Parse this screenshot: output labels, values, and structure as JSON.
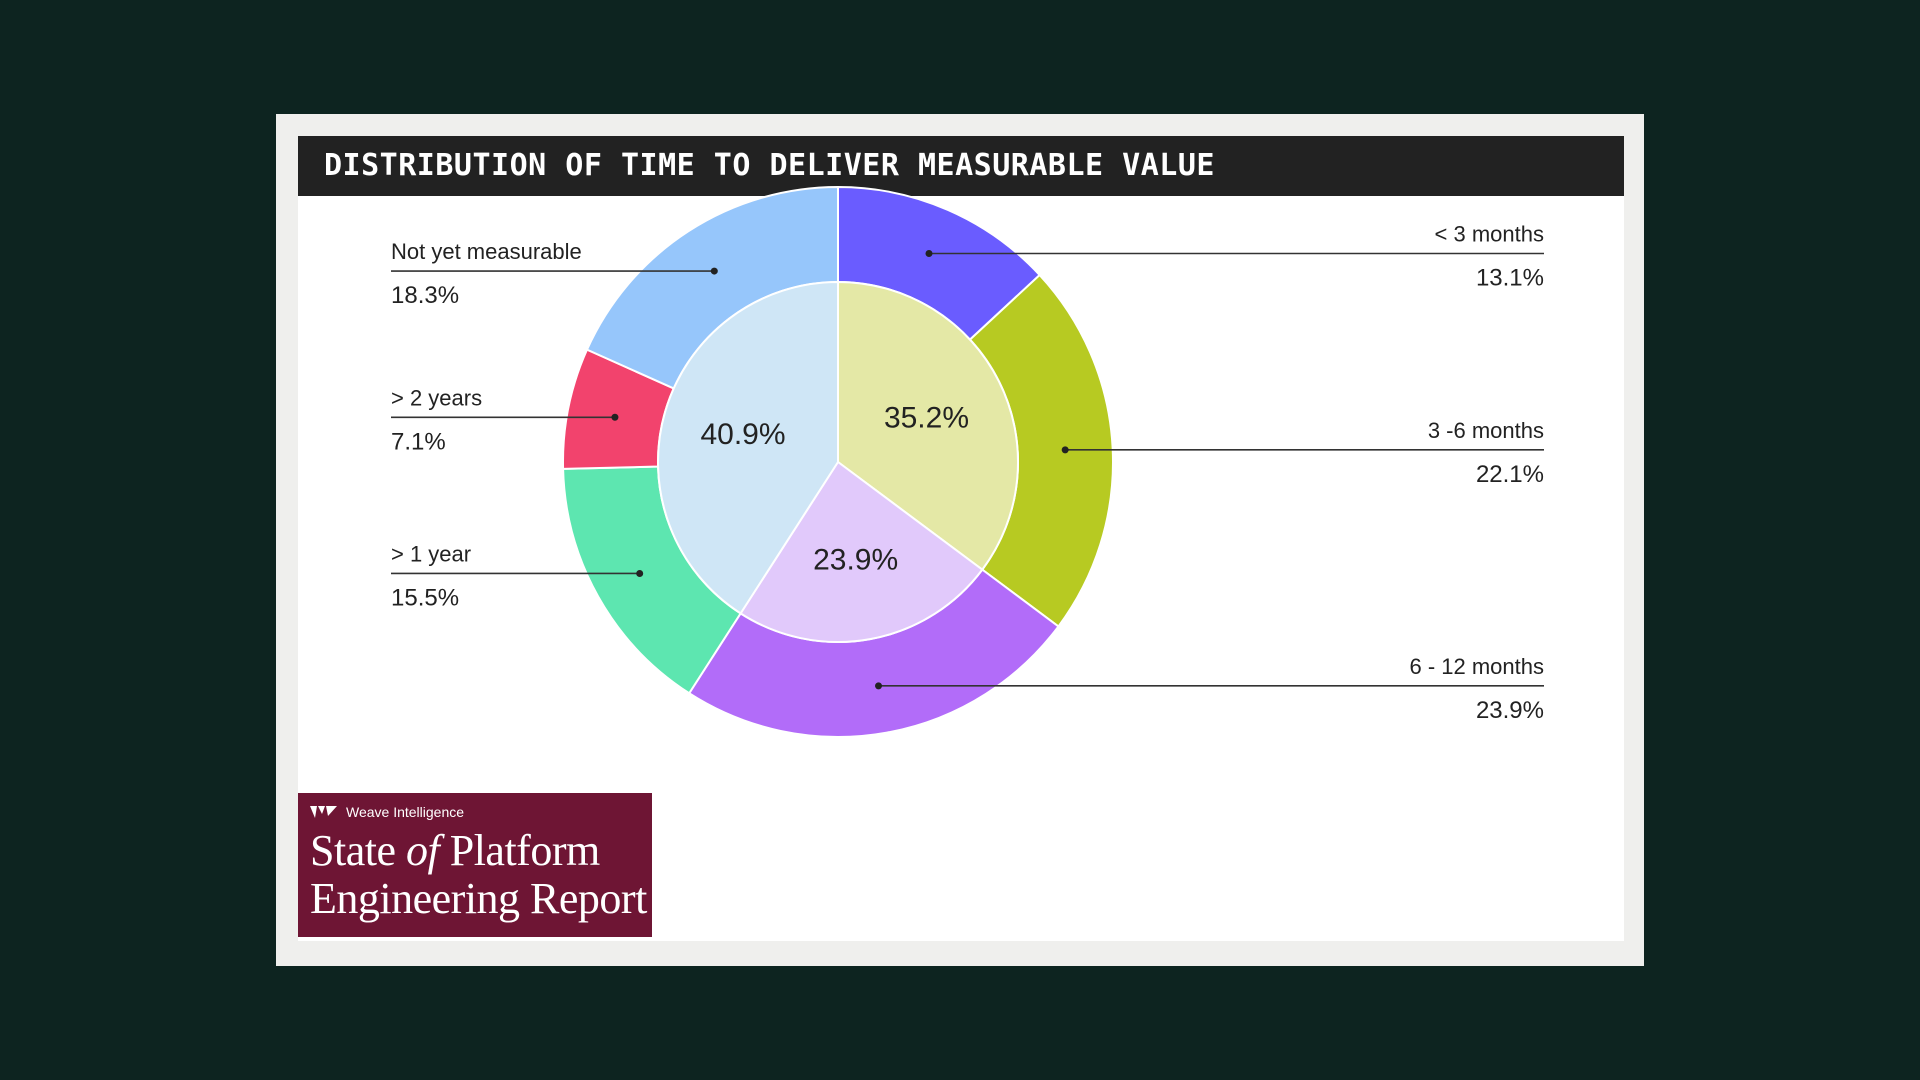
{
  "title": "DISTRIBUTION OF TIME TO DELIVER MEASURABLE VALUE",
  "brand": {
    "company": "Weave Intelligence",
    "logo_icon": "weave-logo-icon",
    "report_line1_a": "State",
    "report_line1_b": "of",
    "report_line1_c": "Platform",
    "report_line2": "Engineering Report"
  },
  "colors": {
    "background": "#0d2420",
    "title_bar": "#222222",
    "brand_bg": "#6e1534"
  },
  "chart_data": {
    "type": "pie",
    "outer_ring": [
      {
        "label": "< 3 months",
        "value": 13.1,
        "value_label": "13.1%",
        "color": "#6a5cff",
        "side": "right"
      },
      {
        "label": "3 -6 months",
        "value": 22.1,
        "value_label": "22.1%",
        "color": "#b7ca22",
        "side": "right"
      },
      {
        "label": "6 - 12 months",
        "value": 23.9,
        "value_label": "23.9%",
        "color": "#b26cf9",
        "side": "right"
      },
      {
        "label": "> 1 year",
        "value": 15.5,
        "value_label": "15.5%",
        "color": "#5de6b0",
        "side": "left"
      },
      {
        "label": "> 2 years",
        "value": 7.1,
        "value_label": "7.1%",
        "color": "#f2436d",
        "side": "left"
      },
      {
        "label": "Not yet measurable",
        "value": 18.3,
        "value_label": "18.3%",
        "color": "#96c6fb",
        "side": "left"
      }
    ],
    "inner_groups": [
      {
        "value": 35.2,
        "value_label": "35.2%",
        "color": "#e4e8a6"
      },
      {
        "value": 23.9,
        "value_label": "23.9%",
        "color": "#e1c9fb"
      },
      {
        "value": 40.9,
        "value_label": "40.9%",
        "color": "#cfe6f6"
      }
    ]
  }
}
